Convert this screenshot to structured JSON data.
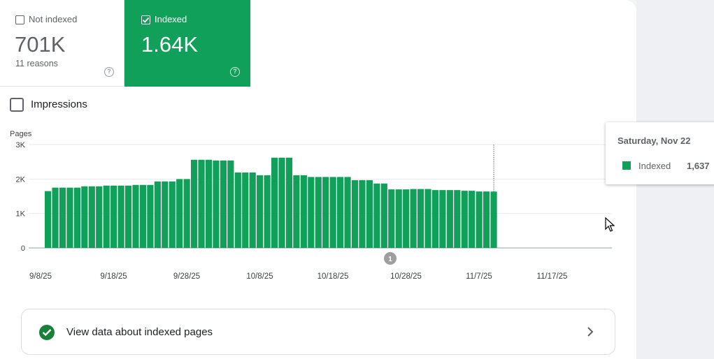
{
  "tiles": {
    "not_indexed": {
      "label": "Not indexed",
      "value": "701K",
      "sub": "11 reasons",
      "checked": false
    },
    "indexed": {
      "label": "Indexed",
      "value": "1.64K",
      "checked": true
    }
  },
  "impressions": {
    "label": "Impressions",
    "checked": false
  },
  "chart_data": {
    "type": "bar",
    "ylabel": "Pages",
    "ylim": [
      0,
      3000
    ],
    "yticks": [
      "0",
      "1K",
      "2K",
      "3K"
    ],
    "xticks": [
      "9/8/25",
      "9/18/25",
      "9/28/25",
      "10/8/25",
      "10/18/25",
      "10/28/25",
      "11/7/25",
      "11/17/25"
    ],
    "series": [
      {
        "name": "Indexed",
        "color": "#11a05a",
        "start_date": "2025-09-08",
        "end_date": "2025-11-22",
        "values": [
          1650,
          1750,
          1750,
          1750,
          1750,
          1790,
          1790,
          1790,
          1810,
          1810,
          1810,
          1810,
          1830,
          1830,
          1830,
          1930,
          1930,
          1930,
          2000,
          2000,
          2560,
          2560,
          2560,
          2540,
          2540,
          2540,
          2190,
          2190,
          2190,
          2110,
          2110,
          2620,
          2620,
          2620,
          2110,
          2110,
          2060,
          2060,
          2060,
          2060,
          2060,
          2060,
          1970,
          1970,
          1970,
          1870,
          1870,
          1700,
          1700,
          1700,
          1710,
          1710,
          1710,
          1680,
          1680,
          1680,
          1680,
          1660,
          1660,
          1640,
          1640,
          1637
        ]
      }
    ],
    "annotation": "1"
  },
  "tooltip": {
    "date": "Saturday, Nov 22",
    "series": "Indexed",
    "value": "1,637"
  },
  "view_data": {
    "label": "View data about indexed pages"
  },
  "colors": {
    "accent": "#11a05a",
    "check": "#188038"
  }
}
